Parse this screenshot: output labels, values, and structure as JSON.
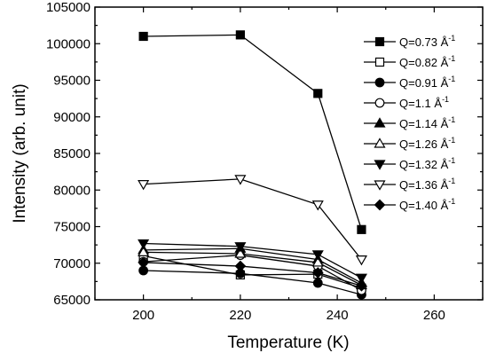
{
  "chart_data": {
    "type": "line",
    "xlabel": "Temperature (K)",
    "ylabel": "Intensity (arb. unit)",
    "xlim": [
      190,
      270
    ],
    "ylim": [
      65000,
      105000
    ],
    "xticks": [
      200,
      220,
      240,
      260
    ],
    "yticks": [
      65000,
      70000,
      75000,
      80000,
      85000,
      90000,
      95000,
      100000,
      105000
    ],
    "x": [
      200,
      220,
      236,
      245
    ],
    "legend_position": "top-right",
    "unit_symbol": "Å",
    "unit_exponent": "-1",
    "series": [
      {
        "name": "Q=0.73",
        "marker": "square",
        "filled": true,
        "values": [
          101000,
          101200,
          93200,
          74600
        ]
      },
      {
        "name": "Q=0.82",
        "marker": "square",
        "filled": false,
        "values": [
          71000,
          68400,
          68500,
          66600
        ]
      },
      {
        "name": "Q=0.91",
        "marker": "circle",
        "filled": true,
        "values": [
          69000,
          68600,
          67300,
          65700
        ]
      },
      {
        "name": "Q=1.1",
        "marker": "circle",
        "filled": false,
        "values": [
          70200,
          71100,
          69600,
          66300
        ]
      },
      {
        "name": "Q=1.14",
        "marker": "triangle-up",
        "filled": true,
        "values": [
          71800,
          72000,
          70500,
          67300
        ]
      },
      {
        "name": "Q=1.26",
        "marker": "triangle-up",
        "filled": false,
        "values": [
          71500,
          71300,
          70100,
          67000
        ]
      },
      {
        "name": "Q=1.32",
        "marker": "triangle-down",
        "filled": true,
        "values": [
          72700,
          72300,
          71200,
          68000
        ]
      },
      {
        "name": "Q=1.36",
        "marker": "triangle-down",
        "filled": false,
        "values": [
          80800,
          81500,
          78000,
          70500
        ]
      },
      {
        "name": "Q=1.40",
        "marker": "diamond",
        "filled": true,
        "values": [
          70100,
          69600,
          68700,
          66900
        ]
      }
    ]
  }
}
